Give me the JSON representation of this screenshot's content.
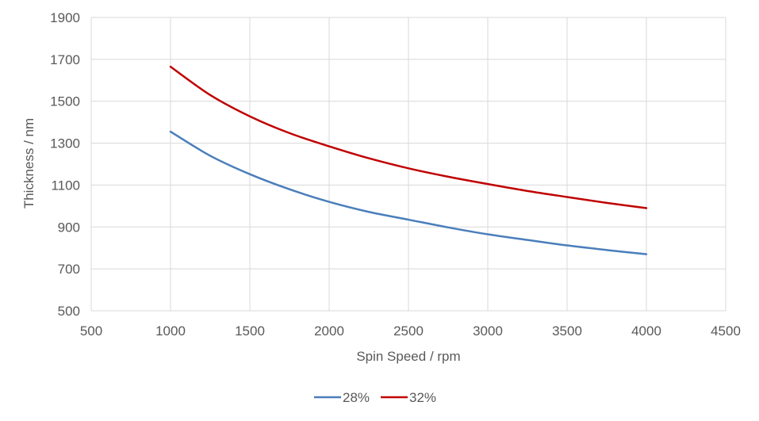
{
  "chart_data": {
    "type": "line",
    "title": "",
    "xlabel": "Spin Speed / rpm",
    "ylabel": "Thickness / nm",
    "xlim": [
      500,
      4500
    ],
    "ylim": [
      500,
      1900
    ],
    "xticks": [
      500,
      1000,
      1500,
      2000,
      2500,
      3000,
      3500,
      4000,
      4500
    ],
    "yticks": [
      500,
      700,
      900,
      1100,
      1300,
      1500,
      1700,
      1900
    ],
    "grid": true,
    "legend_position": "bottom",
    "series": [
      {
        "name": "28%",
        "color": "#4a7ebb",
        "x": [
          1000,
          1250,
          1500,
          1750,
          2000,
          2250,
          2500,
          2750,
          3000,
          3250,
          3500,
          3750,
          4000
        ],
        "y": [
          1355,
          1240,
          1152,
          1080,
          1020,
          972,
          935,
          898,
          865,
          838,
          812,
          790,
          770
        ]
      },
      {
        "name": "32%",
        "color": "#c00000",
        "x": [
          1000,
          1250,
          1500,
          1750,
          2000,
          2250,
          2500,
          2750,
          3000,
          3250,
          3500,
          3750,
          4000
        ],
        "y": [
          1665,
          1530,
          1428,
          1348,
          1285,
          1228,
          1180,
          1140,
          1105,
          1072,
          1043,
          1015,
          990
        ]
      }
    ]
  }
}
